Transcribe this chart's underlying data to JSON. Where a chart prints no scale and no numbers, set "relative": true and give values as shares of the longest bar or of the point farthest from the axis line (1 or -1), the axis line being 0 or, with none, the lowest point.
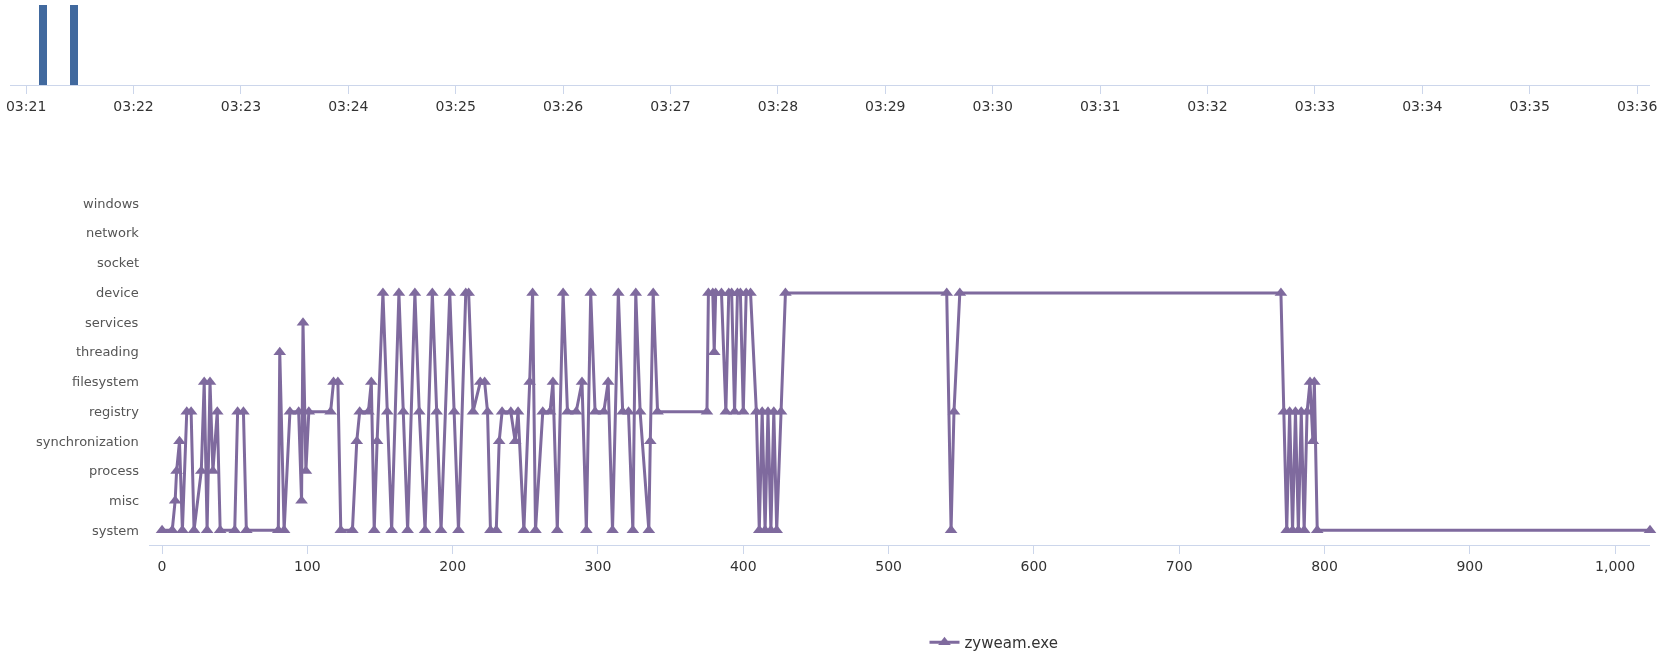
{
  "chart_data": [
    {
      "type": "bar",
      "relative": true,
      "x": [
        3.3526,
        3.3574
      ],
      "values": [
        1,
        1
      ],
      "color": "#41699e",
      "xlim": [
        3.3475,
        3.602
      ],
      "xticks": [
        {
          "value": 3.35,
          "label": "03:21"
        },
        {
          "value": 3.36667,
          "label": "03:22"
        },
        {
          "value": 3.38333,
          "label": "03:23"
        },
        {
          "value": 3.4,
          "label": "03:24"
        },
        {
          "value": 3.41667,
          "label": "03:25"
        },
        {
          "value": 3.43333,
          "label": "03:26"
        },
        {
          "value": 3.45,
          "label": "03:27"
        },
        {
          "value": 3.46667,
          "label": "03:28"
        },
        {
          "value": 3.48333,
          "label": "03:29"
        },
        {
          "value": 3.5,
          "label": "03:30"
        },
        {
          "value": 3.51667,
          "label": "03:31"
        },
        {
          "value": 3.53333,
          "label": "03:32"
        },
        {
          "value": 3.55,
          "label": "03:33"
        },
        {
          "value": 3.56667,
          "label": "03:34"
        },
        {
          "value": 3.58333,
          "label": "03:35"
        },
        {
          "value": 3.6,
          "label": "03:36"
        }
      ],
      "legend": false
    },
    {
      "type": "line",
      "marker": "triangle",
      "legend": "bottom",
      "relative": true,
      "annotations": [
        "system",
        "misc",
        "process",
        "synchronization",
        "registry",
        "filesystem",
        "threading",
        "services",
        "device",
        "socket",
        "network",
        "windows"
      ],
      "xlim": [
        -9,
        1024
      ],
      "xticks": [
        0,
        100,
        200,
        300,
        400,
        500,
        600,
        700,
        800,
        900,
        {
          "value": 1000,
          "label": "1,000"
        }
      ],
      "series": [
        {
          "name": "zyweam.exe",
          "color": "#7f6a9e",
          "x": [
            0,
            7,
            9,
            10,
            12,
            14,
            17,
            20,
            22,
            27,
            29,
            31,
            33,
            35,
            38,
            40,
            50,
            52,
            56,
            58,
            80,
            81,
            84,
            88,
            94,
            96,
            97,
            99,
            101,
            116,
            118,
            121,
            123,
            131,
            134,
            136,
            142,
            144,
            146,
            148,
            152,
            155,
            158,
            163,
            166,
            169,
            174,
            177,
            181,
            186,
            189,
            192,
            198,
            201,
            204,
            209,
            211,
            214,
            219,
            222,
            224,
            226,
            230,
            232,
            234,
            240,
            243,
            245,
            249,
            253,
            255,
            257,
            262,
            267,
            269,
            272,
            276,
            279,
            285,
            289,
            292,
            295,
            298,
            304,
            307,
            310,
            314,
            317,
            321,
            324,
            326,
            329,
            335,
            336,
            338,
            341,
            375,
            376,
            379,
            380,
            381,
            385,
            388,
            390,
            392,
            394,
            396,
            398,
            400,
            402,
            405,
            409,
            411,
            413,
            415,
            417,
            419,
            421,
            423,
            426,
            429,
            540,
            543,
            545,
            549,
            770,
            772,
            774,
            776,
            778,
            780,
            782,
            784,
            786,
            788,
            790,
            792,
            793,
            795,
            1024
          ],
          "values": [
            0.059,
            0.059,
            0.176,
            0.294,
            0.412,
            0.059,
            0.529,
            0.529,
            0.059,
            0.294,
            0.647,
            0.059,
            0.647,
            0.294,
            0.529,
            0.059,
            0.059,
            0.529,
            0.529,
            0.059,
            0.059,
            0.765,
            0.059,
            0.529,
            0.529,
            0.176,
            0.882,
            0.294,
            0.529,
            0.529,
            0.647,
            0.647,
            0.059,
            0.059,
            0.412,
            0.529,
            0.529,
            0.647,
            0.059,
            0.412,
            1,
            0.529,
            0.059,
            1,
            0.529,
            0.059,
            1,
            0.529,
            0.059,
            1,
            0.529,
            0.059,
            1,
            0.529,
            0.059,
            1,
            1,
            0.529,
            0.647,
            0.647,
            0.529,
            0.059,
            0.059,
            0.412,
            0.529,
            0.529,
            0.412,
            0.529,
            0.059,
            0.647,
            1,
            0.059,
            0.529,
            0.529,
            0.647,
            0.059,
            1,
            0.529,
            0.529,
            0.647,
            0.059,
            1,
            0.529,
            0.529,
            0.647,
            0.059,
            1,
            0.529,
            0.529,
            0.059,
            1,
            0.529,
            0.059,
            0.412,
            1,
            0.529,
            0.529,
            1,
            1,
            0.765,
            1,
            1,
            0.529,
            1,
            1,
            0.529,
            1,
            1,
            0.529,
            1,
            1,
            0.529,
            0.059,
            0.529,
            0.059,
            0.529,
            0.059,
            0.529,
            0.059,
            0.529,
            1,
            1,
            0.059,
            0.529,
            1,
            1,
            0.529,
            0.059,
            0.529,
            0.059,
            0.529,
            0.059,
            0.529,
            0.059,
            0.529,
            0.647,
            0.412,
            0.647,
            0.059,
            0.059
          ]
        }
      ]
    }
  ]
}
